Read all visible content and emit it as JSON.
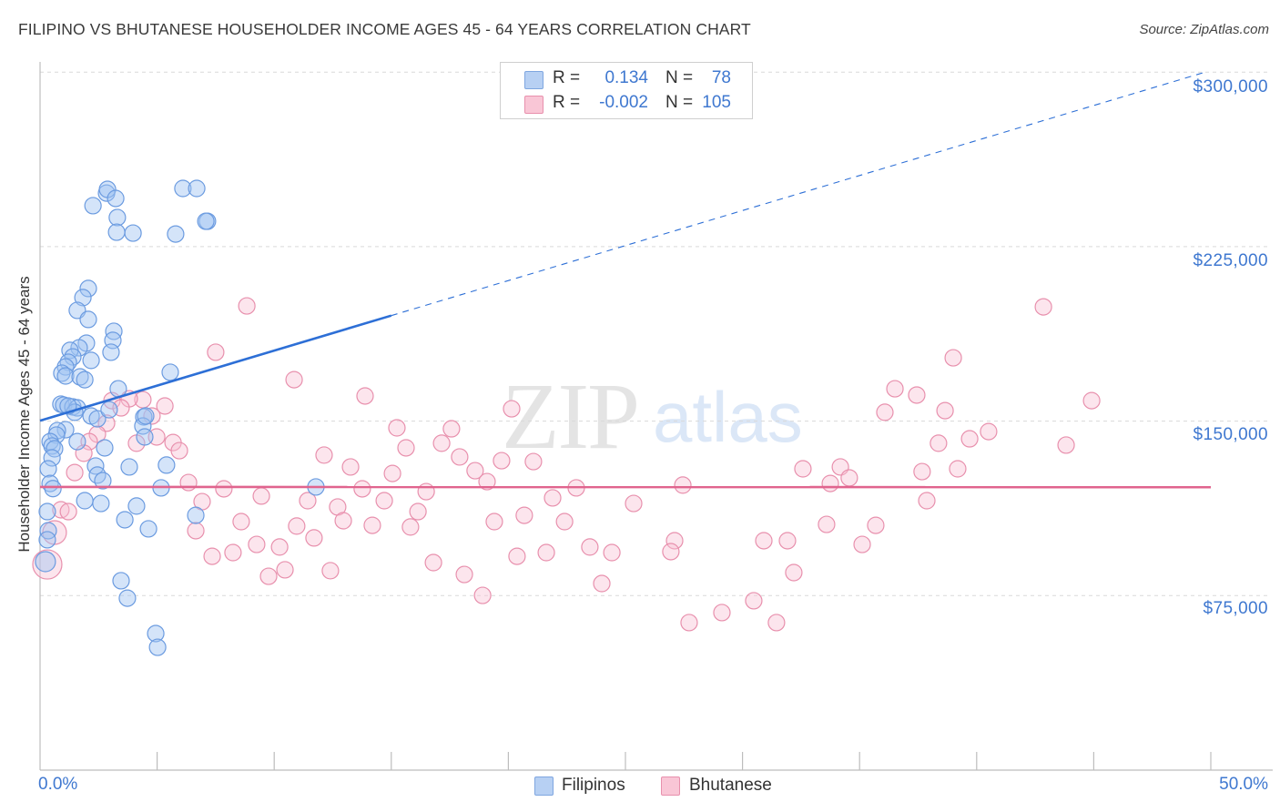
{
  "header": {
    "title": "FILIPINO VS BHUTANESE HOUSEHOLDER INCOME AGES 45 - 64 YEARS CORRELATION CHART",
    "source": "Source: ZipAtlas.com"
  },
  "watermark": {
    "zip": "ZIP",
    "atlas": "atlas"
  },
  "legend": {
    "rows": [
      {
        "r_label": "R =",
        "r_value": "0.134",
        "n_label": "N =",
        "n_value": "78",
        "color": "#b7d0f3",
        "border": "#7fa6e0"
      },
      {
        "r_label": "R =",
        "r_value": "-0.002",
        "n_label": "N =",
        "n_value": "105",
        "color": "#f9c6d6",
        "border": "#e890ad"
      }
    ]
  },
  "bottom_legend": [
    {
      "label": "Filipinos",
      "color": "#b7d0f3",
      "border": "#7fa6e0"
    },
    {
      "label": "Bhutanese",
      "color": "#f9c6d6",
      "border": "#e890ad"
    }
  ],
  "axes": {
    "y_title": "Householder Income Ages 45 - 64 years",
    "y_ticks": [
      {
        "value": 300000,
        "label": "$300,000"
      },
      {
        "value": 225000,
        "label": "$225,000"
      },
      {
        "value": 150000,
        "label": "$150,000"
      },
      {
        "value": 75000,
        "label": "$75,000"
      }
    ],
    "x_min_label": "0.0%",
    "x_max_label": "50.0%"
  },
  "colors": {
    "blue_fill": "rgba(160,196,241,0.45)",
    "blue_stroke": "#6b9be0",
    "blue_line": "#2d6fd6",
    "pink_fill": "rgba(248,192,211,0.42)",
    "pink_stroke": "#e890ad",
    "pink_line": "#e0648e",
    "axis_label": "#3f78d0"
  },
  "chart_data": {
    "type": "scatter",
    "title": "FILIPINO VS BHUTANESE HOUSEHOLDER INCOME AGES 45 - 64 YEARS CORRELATION CHART",
    "xlabel": "",
    "ylabel": "Householder Income Ages 45 - 64 years",
    "xlim": [
      0,
      50
    ],
    "ylim": [
      0,
      310000
    ],
    "x_unit": "%",
    "grid": true,
    "legend_position": "top-center",
    "series": [
      {
        "name": "Filipinos",
        "R": 0.134,
        "N": 78,
        "regression": {
          "x0": 0,
          "y0": 150200,
          "x1": 49.7,
          "y1": 299800,
          "solid_until_x": 15
        },
        "points": [
          [
            2.26,
            242600
          ],
          [
            2.84,
            248000
          ],
          [
            2.88,
            249600
          ],
          [
            3.23,
            245700
          ],
          [
            3.3,
            237500
          ],
          [
            3.27,
            231200
          ],
          [
            3.97,
            230800
          ],
          [
            6.1,
            250000
          ],
          [
            6.69,
            250000
          ],
          [
            7.15,
            235900
          ],
          [
            7.08,
            235900
          ],
          [
            5.79,
            230400
          ],
          [
            2.06,
            207000
          ],
          [
            1.83,
            203100
          ],
          [
            1.59,
            197600
          ],
          [
            2.06,
            193700
          ],
          [
            3.15,
            188600
          ],
          [
            3.11,
            184700
          ],
          [
            3.03,
            179600
          ],
          [
            1.98,
            183500
          ],
          [
            1.67,
            181500
          ],
          [
            1.28,
            180400
          ],
          [
            1.4,
            177600
          ],
          [
            2.18,
            176100
          ],
          [
            1.21,
            175300
          ],
          [
            1.09,
            173300
          ],
          [
            0.93,
            170600
          ],
          [
            1.09,
            169400
          ],
          [
            1.71,
            169000
          ],
          [
            1.91,
            167800
          ],
          [
            5.56,
            171000
          ],
          [
            3.34,
            163900
          ],
          [
            0.89,
            157300
          ],
          [
            1.01,
            156900
          ],
          [
            1.4,
            156100
          ],
          [
            1.59,
            155700
          ],
          [
            1.48,
            153800
          ],
          [
            2.18,
            152200
          ],
          [
            2.45,
            151000
          ],
          [
            2.95,
            154900
          ],
          [
            4.43,
            151800
          ],
          [
            4.39,
            147900
          ],
          [
            4.47,
            143200
          ],
          [
            4.51,
            152200
          ],
          [
            1.09,
            146300
          ],
          [
            0.74,
            145900
          ],
          [
            0.7,
            144000
          ],
          [
            0.43,
            141200
          ],
          [
            0.51,
            139300
          ],
          [
            0.62,
            138100
          ],
          [
            1.59,
            141200
          ],
          [
            2.76,
            138500
          ],
          [
            0.51,
            134200
          ],
          [
            0.35,
            129500
          ],
          [
            2.37,
            130700
          ],
          [
            2.45,
            126800
          ],
          [
            2.68,
            124400
          ],
          [
            3.81,
            130300
          ],
          [
            5.4,
            131100
          ],
          [
            0.43,
            123200
          ],
          [
            5.17,
            121300
          ],
          [
            1.91,
            115800
          ],
          [
            2.6,
            114600
          ],
          [
            4.12,
            113500
          ],
          [
            3.62,
            107600
          ],
          [
            4.63,
            103700
          ],
          [
            6.65,
            109500
          ],
          [
            0.31,
            111100
          ],
          [
            0.35,
            102900
          ],
          [
            0.31,
            99000
          ],
          [
            0.23,
            89600,
            11
          ],
          [
            3.46,
            81400
          ],
          [
            3.73,
            73900
          ],
          [
            4.94,
            58700
          ],
          [
            5.02,
            52800
          ],
          [
            11.78,
            121700
          ],
          [
            1.2,
            156500
          ],
          [
            0.55,
            121000
          ]
        ]
      },
      {
        "name": "Bhutanese",
        "R": -0.002,
        "N": 105,
        "regression": {
          "x0": 0,
          "y0": 121700,
          "x1": 50,
          "y1": 121600,
          "solid_until_x": 50
        },
        "points": [
          [
            8.83,
            199500
          ],
          [
            7.5,
            179600
          ],
          [
            10.85,
            167800
          ],
          [
            13.88,
            160800
          ],
          [
            15.24,
            147100
          ],
          [
            15.63,
            138500
          ],
          [
            12.13,
            135400
          ],
          [
            13.26,
            130300
          ],
          [
            15.05,
            127500
          ],
          [
            6.34,
            123600
          ],
          [
            7.85,
            120900
          ],
          [
            9.45,
            117800
          ],
          [
            11.43,
            115800
          ],
          [
            13.76,
            120900
          ],
          [
            14.7,
            115800
          ],
          [
            16.49,
            119700
          ],
          [
            6.92,
            115400
          ],
          [
            12.71,
            113100
          ],
          [
            12.95,
            107200
          ],
          [
            8.59,
            106800
          ],
          [
            10.96,
            104900
          ],
          [
            14.19,
            105200
          ],
          [
            16.14,
            111100
          ],
          [
            15.82,
            104500
          ],
          [
            6.65,
            102900
          ],
          [
            11.7,
            99800
          ],
          [
            9.25,
            97000
          ],
          [
            10.23,
            95900
          ],
          [
            8.24,
            93500
          ],
          [
            7.35,
            91900
          ],
          [
            10.46,
            86100
          ],
          [
            9.76,
            83300
          ],
          [
            12.4,
            85700
          ],
          [
            4.39,
            159200
          ],
          [
            5.33,
            156500
          ],
          [
            4.78,
            152200
          ],
          [
            3.81,
            159600
          ],
          [
            4.12,
            140500
          ],
          [
            4.98,
            143200
          ],
          [
            5.68,
            140800
          ],
          [
            5.95,
            137300
          ],
          [
            3.07,
            158800
          ],
          [
            3.46,
            155700
          ],
          [
            2.84,
            149100
          ],
          [
            2.45,
            144400
          ],
          [
            2.1,
            141200
          ],
          [
            1.87,
            136200
          ],
          [
            1.48,
            127900
          ],
          [
            0.89,
            111900
          ],
          [
            1.21,
            111100
          ],
          [
            0.62,
            102100,
            13
          ],
          [
            0.31,
            88400,
            16
          ],
          [
            20.14,
            155300
          ],
          [
            17.57,
            146700
          ],
          [
            17.15,
            140500
          ],
          [
            17.92,
            134600
          ],
          [
            19.71,
            133000
          ],
          [
            21.07,
            132600
          ],
          [
            18.58,
            128700
          ],
          [
            19.09,
            124000
          ],
          [
            22.9,
            121300
          ],
          [
            27.45,
            122500
          ],
          [
            21.89,
            117000
          ],
          [
            25.35,
            114600
          ],
          [
            19.4,
            106800
          ],
          [
            20.68,
            109500
          ],
          [
            22.4,
            106800
          ],
          [
            23.48,
            95900
          ],
          [
            24.42,
            93500
          ],
          [
            27.1,
            98600
          ],
          [
            26.94,
            93900
          ],
          [
            20.37,
            91900
          ],
          [
            21.62,
            93500
          ],
          [
            16.8,
            89200
          ],
          [
            18.12,
            84100
          ],
          [
            18.9,
            75100
          ],
          [
            23.99,
            80200
          ],
          [
            27.72,
            63400
          ],
          [
            29.12,
            67700
          ],
          [
            36.51,
            163900
          ],
          [
            37.44,
            161200
          ],
          [
            36.08,
            153800
          ],
          [
            38.65,
            154500
          ],
          [
            38.37,
            140500
          ],
          [
            39.7,
            142400
          ],
          [
            40.51,
            145500
          ],
          [
            32.58,
            129500
          ],
          [
            34.18,
            130300
          ],
          [
            34.56,
            125600
          ],
          [
            33.75,
            123200
          ],
          [
            37.67,
            128300
          ],
          [
            39.19,
            129500
          ],
          [
            37.87,
            115800
          ],
          [
            33.59,
            105600
          ],
          [
            35.69,
            105200
          ],
          [
            35.11,
            97000
          ],
          [
            30.91,
            98600
          ],
          [
            31.92,
            98600
          ],
          [
            32.19,
            84900
          ],
          [
            30.48,
            72800
          ],
          [
            31.45,
            63400
          ],
          [
            42.85,
            199100
          ],
          [
            39.0,
            177200
          ],
          [
            44.91,
            158800
          ],
          [
            43.82,
            139700
          ]
        ]
      }
    ]
  }
}
